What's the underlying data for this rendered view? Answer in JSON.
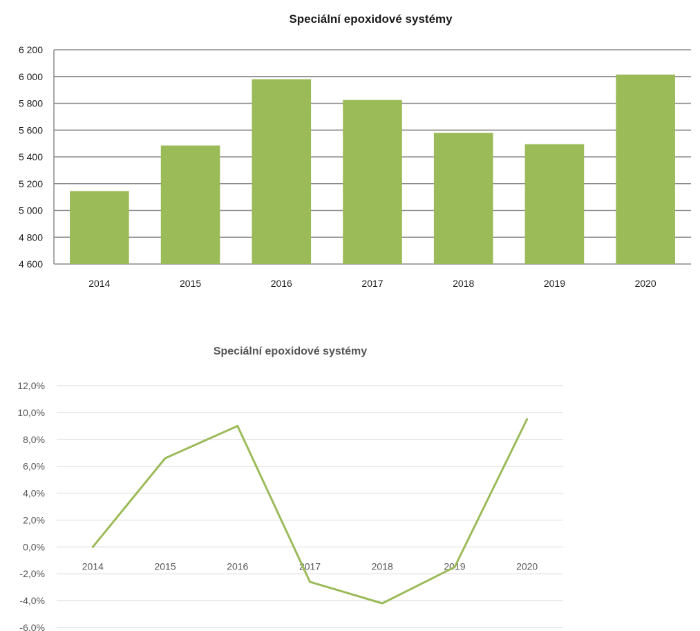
{
  "chart_data": [
    {
      "type": "bar",
      "title": "Speciální epoxidové systémy",
      "categories": [
        "2014",
        "2015",
        "2016",
        "2017",
        "2018",
        "2019",
        "2020"
      ],
      "values": [
        5145,
        5485,
        5980,
        5825,
        5580,
        5495,
        6015
      ],
      "ylim": [
        4600,
        6200
      ],
      "yticks": [
        4600,
        4800,
        5000,
        5200,
        5400,
        5600,
        5800,
        6000,
        6200
      ],
      "ytick_labels": [
        "4 600",
        "4 800",
        "5 000",
        "5 200",
        "5 400",
        "5 600",
        "5 800",
        "6 000",
        "6 200"
      ],
      "grid": true,
      "color": "#9bbb59"
    },
    {
      "type": "line",
      "title": "Speciální epoxidové systémy",
      "categories": [
        "2014",
        "2015",
        "2016",
        "2017",
        "2018",
        "2019",
        "2020"
      ],
      "values": [
        0.0,
        6.6,
        9.0,
        -2.6,
        -4.2,
        -1.5,
        9.5
      ],
      "ylim": [
        -6.0,
        12.0
      ],
      "yticks": [
        -6.0,
        -4.0,
        -2.0,
        0.0,
        2.0,
        4.0,
        6.0,
        8.0,
        10.0,
        12.0
      ],
      "ytick_labels": [
        "-6,0%",
        "-4,0%",
        "-2,0%",
        "0,0%",
        "2,0%",
        "4,0%",
        "6,0%",
        "8,0%",
        "10,0%",
        "12,0%"
      ],
      "grid": true,
      "color": "#9bbb59"
    }
  ]
}
